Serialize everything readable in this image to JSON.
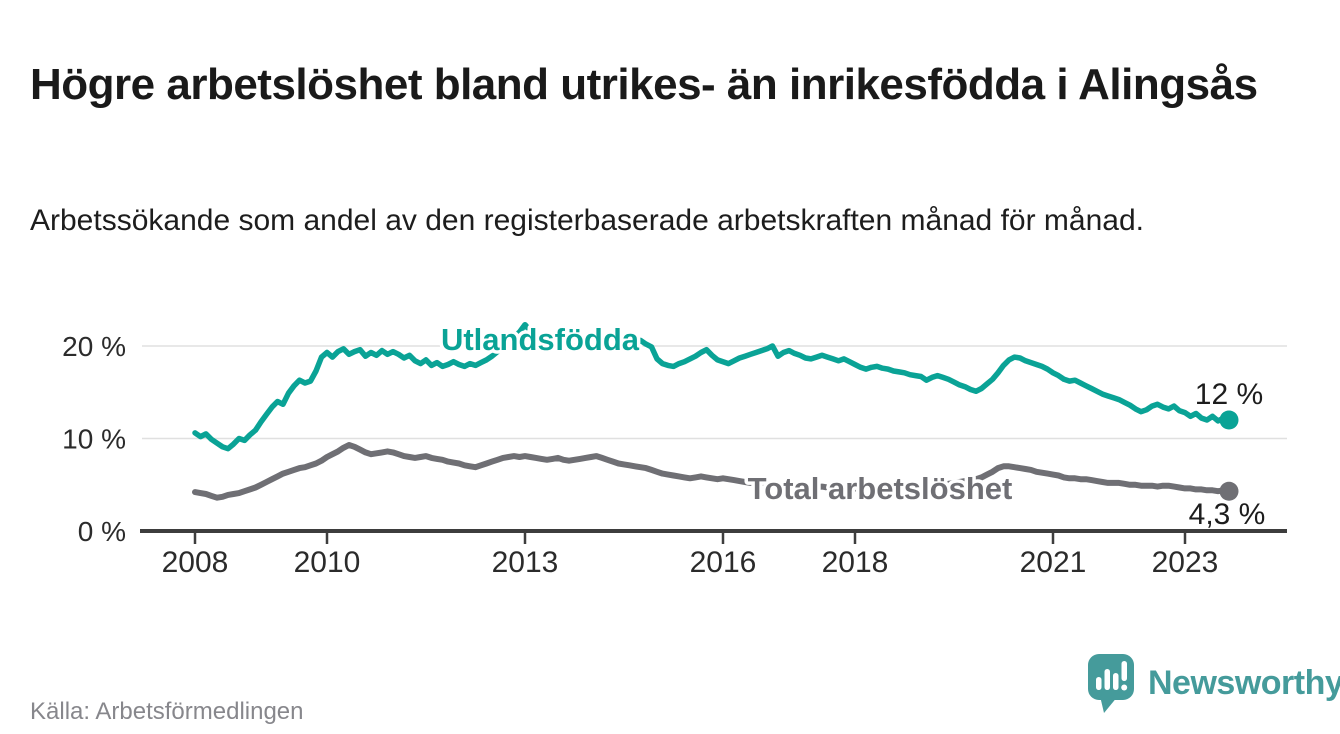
{
  "header": {
    "title": "Högre arbetslöshet bland utrikes- än inrikesfödda i Alingsås",
    "subtitle": "Arbetssökande som andel av den registerbaserade arbetskraften månad för månad."
  },
  "footer": {
    "source": "Källa: Arbetsförmedlingen",
    "brand": "Newsworthy",
    "brand_color": "#459b9b"
  },
  "chart_data": {
    "type": "line",
    "title": "Högre arbetslöshet bland utrikes- än inrikesfödda i Alingsås",
    "subtitle": "Arbetssökande som andel av den registerbaserade arbetskraften månad för månad.",
    "x_start_year": 2008,
    "x_step_months": 1,
    "x_end_label_month": "2023-09",
    "ylim": [
      0,
      23
    ],
    "grid": "horizontal",
    "legend_position": "inline-labels",
    "xticks": [
      {
        "label": "2008",
        "year": 2008
      },
      {
        "label": "2010",
        "year": 2010
      },
      {
        "label": "2013",
        "year": 2013
      },
      {
        "label": "2016",
        "year": 2016
      },
      {
        "label": "2018",
        "year": 2018
      },
      {
        "label": "2021",
        "year": 2021
      },
      {
        "label": "2023",
        "year": 2023
      }
    ],
    "yticks": [
      {
        "label": "0 %",
        "value": 0
      },
      {
        "label": "10 %",
        "value": 10
      },
      {
        "label": "20 %",
        "value": 20
      }
    ],
    "series": [
      {
        "name": "Total arbetslöshet",
        "color": "#6f6f74",
        "end_label": "4,3 %",
        "end_value": 4.3,
        "values": [
          4.2,
          4.1,
          4.0,
          3.8,
          3.6,
          3.7,
          3.9,
          4.0,
          4.1,
          4.3,
          4.5,
          4.7,
          5.0,
          5.3,
          5.6,
          5.9,
          6.2,
          6.4,
          6.6,
          6.8,
          6.9,
          7.1,
          7.3,
          7.6,
          8.0,
          8.3,
          8.6,
          9.0,
          9.3,
          9.1,
          8.8,
          8.5,
          8.3,
          8.4,
          8.5,
          8.6,
          8.5,
          8.3,
          8.1,
          8.0,
          7.9,
          8.0,
          8.1,
          7.9,
          7.8,
          7.7,
          7.5,
          7.4,
          7.3,
          7.1,
          7.0,
          6.9,
          7.1,
          7.3,
          7.5,
          7.7,
          7.9,
          8.0,
          8.1,
          8.0,
          8.1,
          8.0,
          7.9,
          7.8,
          7.7,
          7.8,
          7.9,
          7.7,
          7.6,
          7.7,
          7.8,
          7.9,
          8.0,
          8.1,
          7.9,
          7.7,
          7.5,
          7.3,
          7.2,
          7.1,
          7.0,
          6.9,
          6.8,
          6.6,
          6.4,
          6.2,
          6.1,
          6.0,
          5.9,
          5.8,
          5.7,
          5.8,
          5.9,
          5.8,
          5.7,
          5.6,
          5.7,
          5.6,
          5.5,
          5.4,
          5.3,
          5.2,
          5.3,
          5.2,
          5.1,
          5.0,
          5.1,
          5.0,
          5.0,
          4.9,
          4.8,
          4.8,
          4.7,
          4.7,
          4.8,
          4.7,
          4.6,
          4.6,
          4.7,
          4.6,
          4.6,
          4.5,
          4.4,
          4.4,
          4.3,
          4.4,
          4.5,
          4.4,
          4.4,
          4.5,
          4.5,
          4.6,
          4.7,
          4.8,
          4.8,
          4.9,
          5.0,
          5.1,
          5.2,
          5.3,
          5.4,
          5.5,
          5.6,
          5.8,
          6.1,
          6.4,
          6.8,
          7.0,
          7.0,
          6.9,
          6.8,
          6.7,
          6.6,
          6.4,
          6.3,
          6.2,
          6.1,
          6.0,
          5.8,
          5.7,
          5.7,
          5.6,
          5.6,
          5.5,
          5.4,
          5.3,
          5.2,
          5.2,
          5.2,
          5.1,
          5.0,
          5.0,
          4.9,
          4.9,
          4.9,
          4.8,
          4.9,
          4.9,
          4.8,
          4.7,
          4.6,
          4.6,
          4.5,
          4.5,
          4.4,
          4.4,
          4.3,
          4.4,
          4.3
        ]
      },
      {
        "name": "Utlandsfödda",
        "color": "#0aa396",
        "end_label": "12 %",
        "end_value": 12,
        "values": [
          10.6,
          10.2,
          10.5,
          9.9,
          9.5,
          9.1,
          8.9,
          9.4,
          10.0,
          9.8,
          10.4,
          10.9,
          11.8,
          12.6,
          13.4,
          14.0,
          13.7,
          14.9,
          15.7,
          16.3,
          16.0,
          16.2,
          17.3,
          18.8,
          19.3,
          18.8,
          19.4,
          19.7,
          19.1,
          19.4,
          19.6,
          18.9,
          19.3,
          19.0,
          19.5,
          19.1,
          19.4,
          19.1,
          18.7,
          19.0,
          18.4,
          18.1,
          18.5,
          17.9,
          18.2,
          17.8,
          18.0,
          18.3,
          18.0,
          17.8,
          18.1,
          17.9,
          18.2,
          18.5,
          18.9,
          19.4,
          19.9,
          20.5,
          21.0,
          21.5,
          22.3,
          21.6,
          21.0,
          20.5,
          20.1,
          20.3,
          20.0,
          19.8,
          20.1,
          19.9,
          20.2,
          20.0,
          20.3,
          20.0,
          20.2,
          19.9,
          20.1,
          20.4,
          20.2,
          20.5,
          20.3,
          20.6,
          20.2,
          19.9,
          18.6,
          18.1,
          17.9,
          17.8,
          18.1,
          18.3,
          18.6,
          18.9,
          19.3,
          19.6,
          19.0,
          18.5,
          18.3,
          18.1,
          18.4,
          18.7,
          18.9,
          19.1,
          19.3,
          19.5,
          19.7,
          20.0,
          18.9,
          19.3,
          19.5,
          19.2,
          19.0,
          18.7,
          18.6,
          18.8,
          19.0,
          18.8,
          18.6,
          18.4,
          18.6,
          18.3,
          18.0,
          17.7,
          17.5,
          17.7,
          17.8,
          17.6,
          17.5,
          17.3,
          17.2,
          17.1,
          16.9,
          16.8,
          16.7,
          16.3,
          16.6,
          16.8,
          16.6,
          16.4,
          16.1,
          15.8,
          15.6,
          15.3,
          15.1,
          15.4,
          15.9,
          16.4,
          17.1,
          17.9,
          18.5,
          18.8,
          18.7,
          18.4,
          18.2,
          18.0,
          17.8,
          17.5,
          17.1,
          16.8,
          16.4,
          16.2,
          16.3,
          16.0,
          15.7,
          15.4,
          15.1,
          14.8,
          14.6,
          14.4,
          14.2,
          13.9,
          13.6,
          13.2,
          12.9,
          13.1,
          13.5,
          13.7,
          13.4,
          13.2,
          13.5,
          13.0,
          12.8,
          12.4,
          12.7,
          12.2,
          12.0,
          12.4,
          11.9,
          12.2,
          12.0
        ]
      }
    ]
  }
}
